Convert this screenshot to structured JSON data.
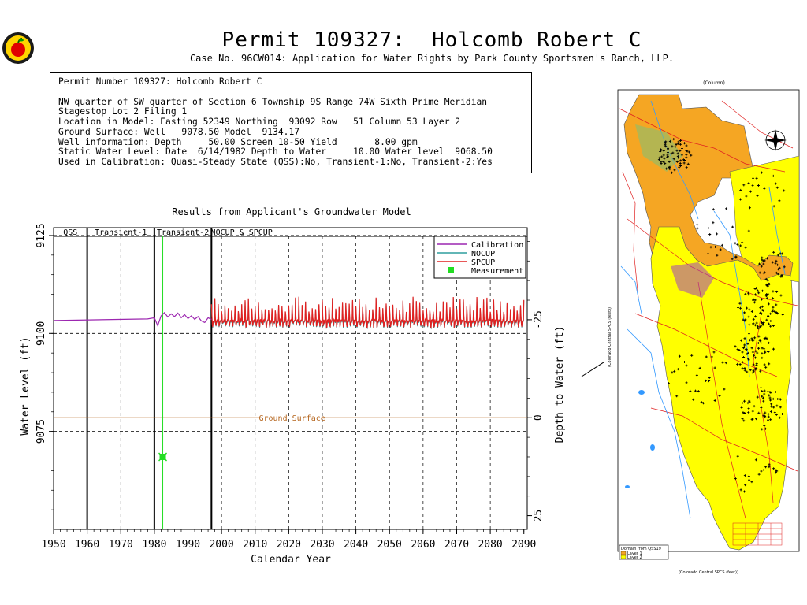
{
  "header": {
    "title": "Permit 109327:  Holcomb Robert C",
    "subtitle": "Case No. 96CW014: Application for Water Rights by Park County Sportsmen's Ranch, LLP."
  },
  "info": {
    "permit_line": "Permit Number 109327: Holcomb Robert C",
    "legal_line": "NW quarter of SW quarter of Section 6 Township 9S Range 74W Sixth Prime Meridian",
    "subdivision_line": "Stagestop Lot 2 Filing 1",
    "location_line": "Location in Model: Easting 52349 Northing  93092 Row   51 Column 53 Layer 2",
    "ground_line": "Ground Surface: Well   9078.50 Model  9134.17",
    "well_line": "Well information: Depth     50.00 Screen 10-50 Yield       8.00 gpm",
    "static_line": "Static Water Level: Date  6/14/1982 Depth to Water     10.00 Water level  9068.50",
    "calibration_line": "Used in Calibration: Quasi-Steady State (QSS):No, Transient-1:No, Transient-2:Yes"
  },
  "chart_data": {
    "type": "line",
    "title": "Results from Applicant's Groundwater Model",
    "xlabel": "Calendar Year",
    "ylabel": "Water Level (ft)",
    "y2label": "Depth to Water (ft)",
    "xlim": [
      1950,
      2091
    ],
    "ylim": [
      9050,
      9127
    ],
    "xticks": [
      1950,
      1960,
      1970,
      1980,
      1990,
      2000,
      2010,
      2020,
      2030,
      2040,
      2050,
      2060,
      2070,
      2080,
      2090
    ],
    "yticks": [
      9075,
      9100,
      9125
    ],
    "y2ticks": [
      "-25",
      "0",
      "25"
    ],
    "y2_values": [
      9103.5,
      9078.5,
      9053.5
    ],
    "grid_y": [
      9075,
      9100,
      9125
    ],
    "grid_x_dashed": [
      1970,
      1990,
      2000,
      2010,
      2020,
      2030,
      2040,
      2050,
      2060,
      2070,
      2080
    ],
    "period_boundaries": [
      1960,
      1980,
      1997
    ],
    "periods": [
      {
        "label": "QSS",
        "x": 1955
      },
      {
        "label": "Transient-1",
        "x": 1970
      },
      {
        "label": "Transient-2",
        "x": 1988.5
      },
      {
        "label": "NOCUP  &  SPCUP",
        "x": 2006
      }
    ],
    "ground_surface": {
      "label": "Ground Surface",
      "value": 9078.5,
      "color": "#b5651d"
    },
    "measurement_year": 1982.5,
    "series": [
      {
        "name": "Calibration",
        "color": "#9c27b0",
        "kind": "calibration"
      },
      {
        "name": "NOCUP",
        "color": "#2f9e9e",
        "kind": "nocup"
      },
      {
        "name": "SPCUP",
        "color": "#e02020",
        "kind": "spcup"
      },
      {
        "name": "Measurement",
        "color": "#22dd22",
        "kind": "measurement",
        "x": [
          1982.5
        ],
        "y": [
          9068.5
        ]
      }
    ],
    "calibration_points": {
      "x": [
        1950,
        1978,
        1980,
        1981,
        1982,
        1983,
        1984,
        1985,
        1986,
        1987,
        1988,
        1989,
        1990,
        1991,
        1992,
        1993,
        1994,
        1995,
        1996,
        1997
      ],
      "y": [
        9103.3,
        9103.7,
        9104.0,
        9102.0,
        9104.5,
        9105.3,
        9104.2,
        9105.0,
        9104.3,
        9105.2,
        9104.0,
        9104.8,
        9103.8,
        9104.5,
        9103.6,
        9104.3,
        9103.2,
        9102.8,
        9104.0,
        9103.6
      ]
    },
    "spcup_range": {
      "start": 1997,
      "end": 2090,
      "base": 9103.2,
      "peak_range": [
        9105.5,
        9109.5
      ],
      "trough_range": [
        9101.5,
        9102.8
      ]
    }
  },
  "map": {
    "top_label": "(Column)",
    "legend_title": "Domain from QSS19",
    "legend_items": [
      "Layer 1",
      "Layer 2"
    ],
    "x_axis_label": "(Colorado Central SPCS (feet))",
    "y_axis_label": "(Colorado Central SPCS (feet))"
  },
  "colors": {
    "layer1": "#f5a623",
    "layer2": "#ffff00",
    "rivers": "#3399ff",
    "roads": "#e02020"
  }
}
